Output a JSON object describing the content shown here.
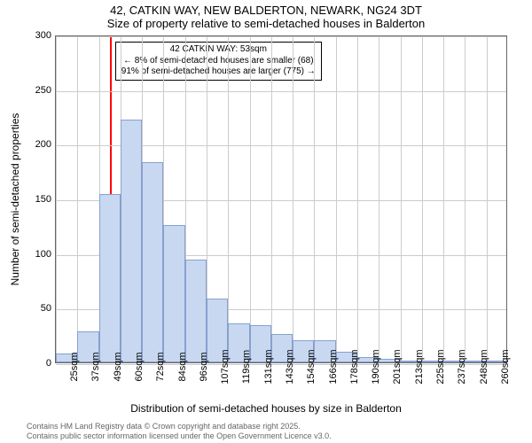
{
  "title": {
    "line1": "42, CATKIN WAY, NEW BALDERTON, NEWARK, NG24 3DT",
    "line2": "Size of property relative to semi-detached houses in Balderton"
  },
  "chart": {
    "type": "histogram",
    "ylabel": "Number of semi-detached properties",
    "xlabel": "Distribution of semi-detached houses by size in Balderton",
    "ylim": [
      0,
      300
    ],
    "yticks": [
      0,
      50,
      100,
      150,
      200,
      250,
      300
    ],
    "xtick_labels": [
      "25sqm",
      "37sqm",
      "49sqm",
      "60sqm",
      "72sqm",
      "84sqm",
      "96sqm",
      "107sqm",
      "119sqm",
      "131sqm",
      "143sqm",
      "154sqm",
      "166sqm",
      "178sqm",
      "190sqm",
      "201sqm",
      "213sqm",
      "225sqm",
      "237sqm",
      "248sqm",
      "260sqm"
    ],
    "bars": [
      8,
      28,
      154,
      222,
      183,
      126,
      94,
      58,
      36,
      34,
      26,
      20,
      20,
      10,
      5,
      3,
      2,
      2,
      1,
      1,
      1
    ],
    "bar_color": "#c8d8f0",
    "bar_border_color": "#88a0d0",
    "grid_color": "#cccccc",
    "border_color": "#666666",
    "background_color": "#ffffff",
    "label_fontsize": 12,
    "tick_fontsize": 11
  },
  "marker": {
    "position_sqm": 53,
    "color": "#ff0000",
    "annotation_lines": [
      "42 CATKIN WAY: 53sqm",
      "← 8% of semi-detached houses are smaller (68)",
      "91% of semi-detached houses are larger (775) →"
    ]
  },
  "footer": {
    "line1": "Contains HM Land Registry data © Crown copyright and database right 2025.",
    "line2": "Contains public sector information licensed under the Open Government Licence v3.0."
  }
}
